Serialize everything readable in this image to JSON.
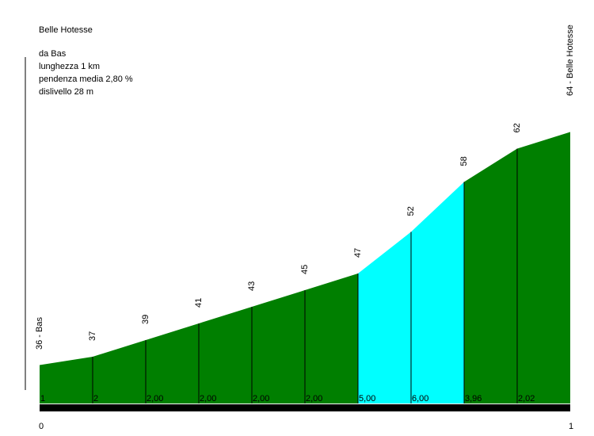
{
  "header": {
    "title": "Belle Hotesse",
    "from": "da Bas",
    "length": "lunghezza 1 km",
    "avg_grade": "pendenza media 2,80 %",
    "elevation_gain": "dislivello 28 m"
  },
  "colors": {
    "normal": "#007f00",
    "steep": "#00ffff",
    "axis": "#000000"
  },
  "chart_data": {
    "type": "area",
    "title": "Belle Hotesse",
    "x_unit": "km",
    "xlim": [
      0,
      1
    ],
    "x_tick_labels": [
      "0",
      "1"
    ],
    "y_unit": "m",
    "points": [
      {
        "x": 0.0,
        "elevation": 36,
        "label": "36 - Bas"
      },
      {
        "x": 0.1,
        "elevation": 37,
        "label": "37"
      },
      {
        "x": 0.2,
        "elevation": 39,
        "label": "39"
      },
      {
        "x": 0.3,
        "elevation": 41,
        "label": "41"
      },
      {
        "x": 0.4,
        "elevation": 43,
        "label": "43"
      },
      {
        "x": 0.5,
        "elevation": 45,
        "label": "45"
      },
      {
        "x": 0.6,
        "elevation": 47,
        "label": "47"
      },
      {
        "x": 0.7,
        "elevation": 52,
        "label": "52"
      },
      {
        "x": 0.8,
        "elevation": 58,
        "label": "58"
      },
      {
        "x": 0.9,
        "elevation": 62,
        "label": "62"
      },
      {
        "x": 1.0,
        "elevation": 64,
        "label": "64 - Belle Hotesse"
      }
    ],
    "segments": [
      {
        "grade_label": "1",
        "grade": 1.0,
        "steep": false
      },
      {
        "grade_label": "2",
        "grade": 2.0,
        "steep": false
      },
      {
        "grade_label": "2,00",
        "grade": 2.0,
        "steep": false
      },
      {
        "grade_label": "2,00",
        "grade": 2.0,
        "steep": false
      },
      {
        "grade_label": "2,00",
        "grade": 2.0,
        "steep": false
      },
      {
        "grade_label": "2,00",
        "grade": 2.0,
        "steep": false
      },
      {
        "grade_label": "5,00",
        "grade": 5.0,
        "steep": true
      },
      {
        "grade_label": "6,00",
        "grade": 6.0,
        "steep": true
      },
      {
        "grade_label": "3,96",
        "grade": 3.96,
        "steep": false
      },
      {
        "grade_label": "2,02",
        "grade": 2.02,
        "steep": false
      }
    ]
  }
}
